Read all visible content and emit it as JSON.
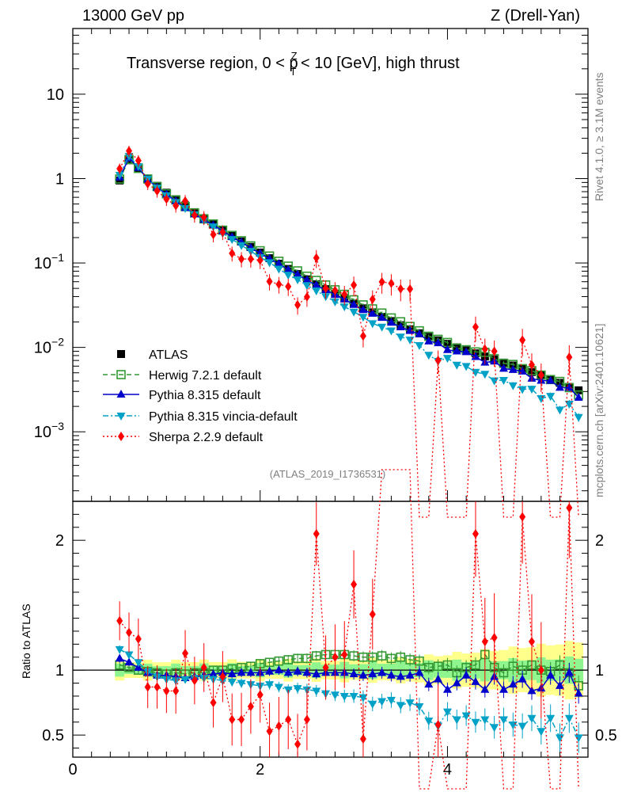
{
  "header": {
    "left": "13000 GeV pp",
    "right": "Z (Drell-Yan)"
  },
  "side_labels": {
    "rivet": "Rivet 4.1.0, ≥ 3.1M events",
    "mcplots": "mcplots.cern.ch [arXiv:2401.10621]"
  },
  "chart_data": {
    "type": "scatter",
    "title": "Transverse region, 0 < p_T^Z < 10 [GeV], high thrust",
    "title_parts": {
      "a": "Transverse region, 0 < p",
      "sup": "Z",
      "sub": "T",
      "b": " < 10 [GeV], high thrust"
    },
    "analysis_tag": "(ATLAS_2019_I1736531)",
    "xlim": [
      0,
      5.5
    ],
    "x_ticks": [
      "0",
      "2",
      "4"
    ],
    "main_panel": {
      "yscale": "log",
      "ylim": [
        0.00015,
        60
      ],
      "y_ticks": [
        {
          "value": 10,
          "label": "10"
        },
        {
          "value": 1,
          "label": "1"
        },
        {
          "value": 0.1,
          "base": "10",
          "exp": "−1"
        },
        {
          "value": 0.01,
          "base": "10",
          "exp": "−2"
        },
        {
          "value": 0.001,
          "base": "10",
          "exp": "−3"
        }
      ]
    },
    "ratio_panel": {
      "ylabel": "Ratio to ATLAS",
      "ylim": [
        0.33,
        2.3
      ],
      "y_ticks": [
        "0.5",
        "1",
        "2"
      ]
    },
    "x": [
      0.5,
      0.6,
      0.7,
      0.8,
      0.9,
      1.0,
      1.1,
      1.2,
      1.3,
      1.4,
      1.5,
      1.6,
      1.7,
      1.8,
      1.9,
      2.0,
      2.1,
      2.2,
      2.3,
      2.4,
      2.5,
      2.6,
      2.7,
      2.8,
      2.9,
      3.0,
      3.1,
      3.2,
      3.3,
      3.4,
      3.5,
      3.6,
      3.7,
      3.8,
      3.9,
      4.0,
      4.1,
      4.2,
      4.3,
      4.4,
      4.5,
      4.6,
      4.7,
      4.8,
      4.9,
      5.0,
      5.1,
      5.2,
      5.3,
      5.4
    ],
    "series": [
      {
        "name": "ATLAS",
        "color": "#000000",
        "values": [
          0.95,
          1.65,
          1.32,
          1.0,
          0.82,
          0.68,
          0.57,
          0.48,
          0.4,
          0.34,
          0.29,
          0.245,
          0.21,
          0.18,
          0.155,
          0.133,
          0.114,
          0.098,
          0.085,
          0.074,
          0.064,
          0.056,
          0.049,
          0.043,
          0.038,
          0.033,
          0.029,
          0.026,
          0.023,
          0.0205,
          0.0183,
          0.0164,
          0.0147,
          0.0133,
          0.0121,
          0.011,
          0.01,
          0.0092,
          0.0085,
          0.0078,
          0.0072,
          0.0066,
          0.0061,
          0.0056,
          0.0051,
          0.0047,
          0.0042,
          0.0038,
          0.0034,
          0.0031
        ]
      },
      {
        "name": "Herwig 7.2.1 default",
        "color": "#339933",
        "ratio": [
          1.04,
          1.02,
          1.0,
          0.99,
          0.98,
          0.97,
          0.98,
          0.97,
          0.98,
          0.98,
          1.0,
          1.0,
          1.01,
          1.02,
          1.03,
          1.05,
          1.06,
          1.07,
          1.08,
          1.09,
          1.09,
          1.11,
          1.12,
          1.12,
          1.12,
          1.11,
          1.1,
          1.1,
          1.11,
          1.09,
          1.1,
          1.08,
          1.07,
          1.02,
          1.03,
          1.04,
          0.98,
          1.02,
          1.04,
          1.12,
          1.02,
          0.98,
          1.03,
          1.0,
          1.04,
          1.0,
          0.99,
          1.04,
          0.98,
          0.88
        ]
      },
      {
        "name": "Pythia 8.315 default",
        "color": "#0000cc",
        "ratio": [
          1.09,
          1.06,
          1.02,
          0.98,
          0.96,
          0.96,
          0.95,
          0.94,
          0.95,
          0.96,
          0.97,
          0.98,
          0.97,
          0.98,
          0.98,
          0.98,
          0.99,
          1.0,
          0.98,
          0.99,
          0.98,
          0.97,
          0.98,
          0.98,
          0.98,
          0.97,
          0.96,
          0.97,
          0.98,
          0.96,
          0.95,
          0.96,
          0.98,
          0.89,
          0.93,
          0.85,
          0.9,
          0.96,
          0.91,
          0.85,
          0.95,
          0.85,
          0.89,
          0.93,
          0.84,
          0.86,
          0.96,
          0.88,
          0.98,
          0.82
        ]
      },
      {
        "name": "Pythia 8.315 vincia-default",
        "color": "#00a1c6",
        "ratio": [
          1.16,
          1.12,
          1.06,
          0.99,
          0.95,
          0.93,
          0.92,
          0.93,
          0.94,
          0.94,
          0.93,
          0.92,
          0.91,
          0.9,
          0.89,
          0.88,
          0.89,
          0.87,
          0.85,
          0.86,
          0.85,
          0.84,
          0.82,
          0.81,
          0.8,
          0.8,
          0.79,
          0.74,
          0.76,
          0.77,
          0.73,
          0.75,
          0.72,
          0.61,
          0.57,
          0.68,
          0.62,
          0.65,
          0.6,
          0.62,
          0.56,
          0.62,
          0.58,
          0.57,
          0.63,
          0.53,
          0.63,
          0.48,
          0.63,
          0.48
        ]
      },
      {
        "name": "Sherpa 2.2.9 default",
        "color": "#ff0000",
        "ratio": [
          1.38,
          1.29,
          1.24,
          0.87,
          0.87,
          0.84,
          0.84,
          1.13,
          0.92,
          1.02,
          0.75,
          0.95,
          0.62,
          0.62,
          0.72,
          0.81,
          0.53,
          0.57,
          0.62,
          0.43,
          0.62,
          2.05,
          1.02,
          1.1,
          1.12,
          1.66,
          0.47,
          1.43,
          2.6,
          2.8,
          2.7,
          3.0,
          0.0,
          0.0,
          0.58,
          0.0,
          0.0,
          0.0,
          2.05,
          1.22,
          1.25,
          0.0,
          0.0,
          2.18,
          1.22,
          1.0,
          0.0,
          0.0,
          2.25,
          0.0
        ]
      }
    ]
  }
}
